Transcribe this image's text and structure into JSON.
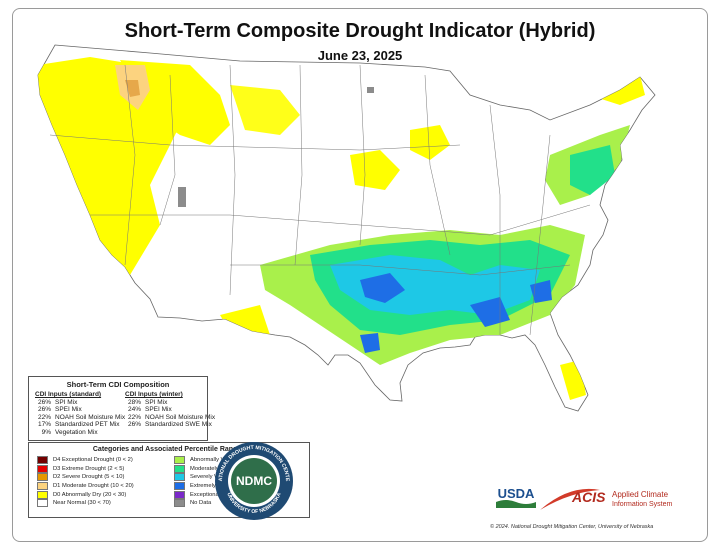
{
  "map": {
    "title": "Short-Term Composite Drought Indicator (Hybrid)",
    "date": "June 23, 2025"
  },
  "composition": {
    "title": "Short-Term CDI Composition",
    "standard": {
      "header": "CDI Inputs (standard)",
      "items": [
        {
          "pct": "26%",
          "label": "SPI Mix"
        },
        {
          "pct": "26%",
          "label": "SPEI Mix"
        },
        {
          "pct": "22%",
          "label": "NOAH Soil Moisture Mix"
        },
        {
          "pct": "17%",
          "label": "Standardized PET Mix"
        },
        {
          "pct": "9%",
          "label": "Vegetation Mix"
        }
      ]
    },
    "winter": {
      "header": "CDI Inputs (winter)",
      "items": [
        {
          "pct": "28%",
          "label": "SPI Mix"
        },
        {
          "pct": "24%",
          "label": "SPEI Mix"
        },
        {
          "pct": "22%",
          "label": "NOAH Soil Moisture Mix"
        },
        {
          "pct": "26%",
          "label": "Standardized SWE Mix"
        }
      ]
    }
  },
  "categories": {
    "title": "Categories and Associated Percentile Ranges",
    "dry": [
      {
        "label": "D4 Exceptional Drought (0 < 2)",
        "color": "#730000"
      },
      {
        "label": "D3 Extreme Drought (2 < 5)",
        "color": "#e60000"
      },
      {
        "label": "D2 Severe Drought (5 < 10)",
        "color": "#e69800"
      },
      {
        "label": "D1 Moderate Drought (10 < 20)",
        "color": "#fcd37f"
      },
      {
        "label": "D0 Abnormally Dry (20 < 30)",
        "color": "#ffff00"
      },
      {
        "label": "Near Normal (30 < 70)",
        "color": "#ffffff"
      }
    ],
    "wet": [
      {
        "label": "Abnormally Wet (70 < 80)",
        "color": "#a9f04b"
      },
      {
        "label": "Moderately Wet (80 < 90)",
        "color": "#22e08a"
      },
      {
        "label": "Severely Wet (90 < 95)",
        "color": "#1ec8e6"
      },
      {
        "label": "Extremely Wet (95 < 98)",
        "color": "#1e6ee6"
      },
      {
        "label": "Exceptionally Wet (98 < 100)",
        "color": "#7a28c8"
      },
      {
        "label": "No Data",
        "color": "#8c8c8c"
      }
    ]
  },
  "logos": {
    "ndmc_text": "NDMC",
    "ndmc_ring_top": "NATIONAL DROUGHT MITIGATION CENTER",
    "ndmc_ring_bottom": "UNIVERSITY OF NEBRASKA",
    "usda_text": "USDA",
    "acis_text": "ACIS",
    "acis_line1": "Applied Climate",
    "acis_line2": "Information System"
  },
  "copyright": "© 2024. National Drought Mitigation Center, University of Nebraska"
}
